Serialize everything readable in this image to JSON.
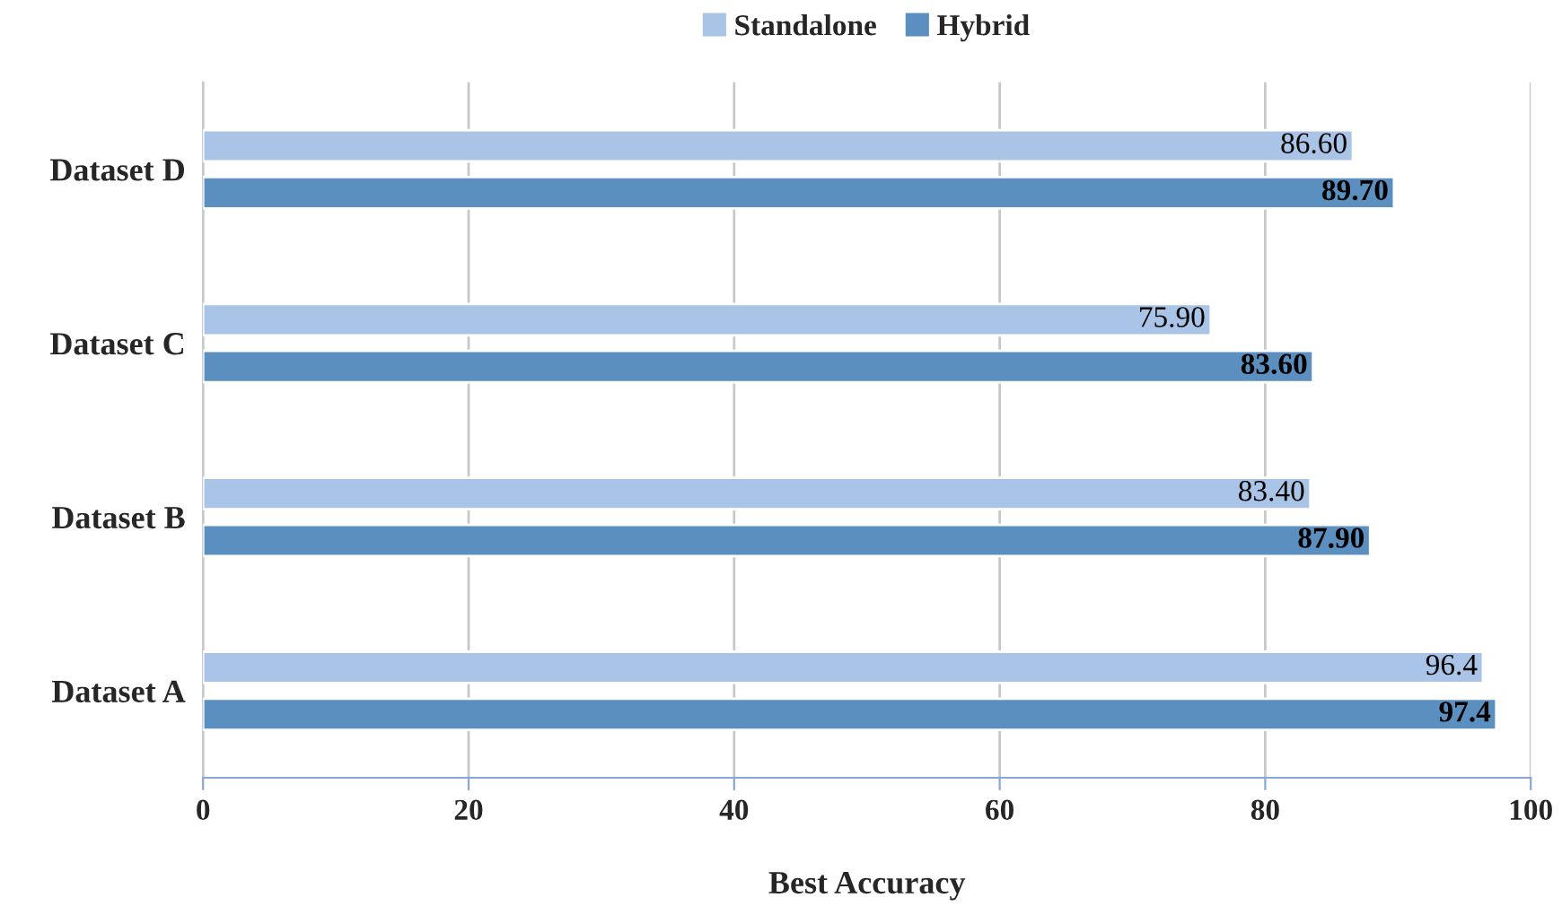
{
  "chart_data": {
    "type": "bar",
    "orientation": "horizontal",
    "categories": [
      "Dataset D",
      "Dataset C",
      "Dataset B",
      "Dataset A"
    ],
    "series": [
      {
        "name": "Standalone",
        "color": "#a9c4e6",
        "values": [
          86.6,
          75.9,
          83.4,
          96.4
        ],
        "value_labels": [
          "86.60",
          "75.90",
          "83.40",
          "96.4"
        ]
      },
      {
        "name": "Hybrid",
        "color": "#5b8fc0",
        "values": [
          89.7,
          83.6,
          87.9,
          97.4
        ],
        "value_labels": [
          "89.70",
          "83.60",
          "87.90",
          "97.4"
        ]
      }
    ],
    "xlabel": "Best Accuracy",
    "xlim": [
      0,
      100
    ],
    "xticks": [
      0,
      20,
      40,
      60,
      80,
      100
    ],
    "grid": "x",
    "legend": "top"
  }
}
